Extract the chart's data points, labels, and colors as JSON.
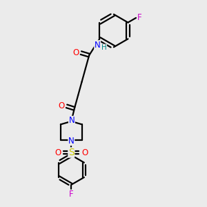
{
  "bg_color": "#ebebeb",
  "atom_colors": {
    "C": "#000000",
    "N": "#0000ff",
    "O": "#ff0000",
    "S": "#cccc00",
    "F": "#cc00cc",
    "H": "#008888"
  },
  "bond_color": "#000000",
  "bond_width": 1.6,
  "font_size": 8.5,
  "title": ""
}
